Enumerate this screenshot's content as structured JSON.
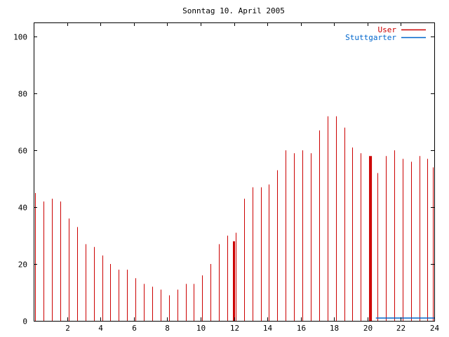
{
  "chart_data": {
    "type": "bar",
    "title": "Sonntag 10. April 2005",
    "xlabel": "",
    "ylabel": "",
    "xlim": [
      0,
      24
    ],
    "ylim": [
      0,
      105
    ],
    "xticks": [
      "2",
      "4",
      "6",
      "8",
      "10",
      "12",
      "14",
      "16",
      "18",
      "20",
      "22",
      "24"
    ],
    "yticks": [
      "0",
      "20",
      "40",
      "60",
      "80",
      "100"
    ],
    "grid": false,
    "legend_position": "top-right",
    "colors": {
      "user": "#cc0000",
      "stuttgarter": "#0066cc",
      "axis": "#000000"
    },
    "series": [
      {
        "name": "User",
        "style": "impulses",
        "x": [
          0.1,
          0.6,
          1.1,
          1.6,
          2.1,
          2.6,
          3.1,
          3.6,
          4.1,
          4.6,
          5.1,
          5.6,
          6.1,
          6.6,
          7.1,
          7.6,
          8.1,
          8.6,
          9.1,
          9.6,
          10.1,
          10.6,
          11.1,
          11.6,
          12.1,
          12.6,
          13.1,
          13.6,
          14.1,
          14.6,
          15.1,
          15.6,
          16.1,
          16.6,
          17.1,
          17.6,
          18.1,
          18.6,
          19.1,
          19.6,
          20.1,
          20.6,
          21.1,
          21.6,
          22.1,
          22.6,
          23.1,
          23.6,
          23.9
        ],
        "values": [
          45,
          42,
          43,
          42,
          36,
          33,
          27,
          26,
          23,
          20,
          18,
          18,
          15,
          13,
          12,
          11,
          9,
          11,
          13,
          13,
          16,
          20,
          27,
          30,
          31,
          43,
          47,
          47,
          48,
          53,
          60,
          59,
          60,
          59,
          67,
          72,
          72,
          68,
          61,
          59,
          58,
          52,
          58,
          60,
          57,
          56,
          58,
          57,
          54
        ],
        "highlights": [
          {
            "x": 12,
            "value": 28
          },
          {
            "x": 20.2,
            "value": 58
          }
        ]
      },
      {
        "name": "Stuttgarter",
        "style": "line",
        "x": [
          20.5,
          24
        ],
        "values": [
          1,
          1
        ]
      }
    ]
  }
}
